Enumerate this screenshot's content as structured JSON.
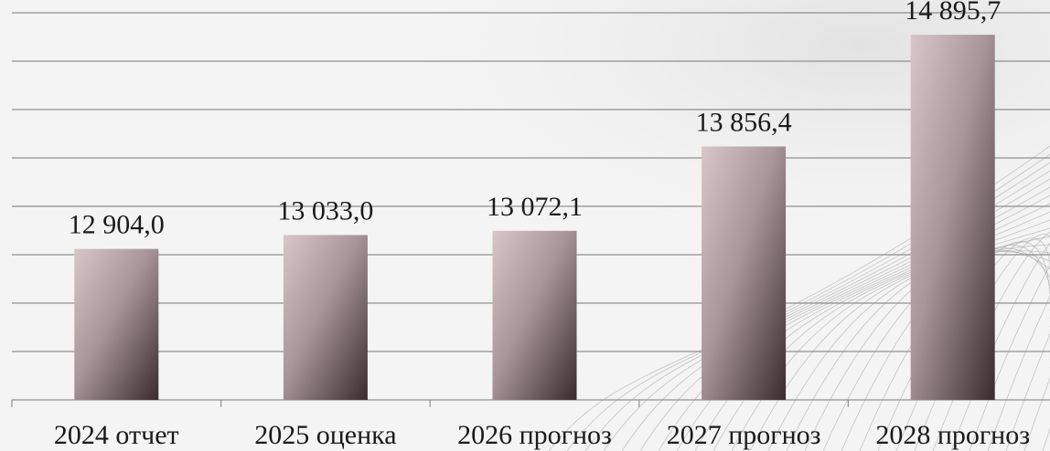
{
  "chart_data": {
    "type": "bar",
    "title": "",
    "xlabel": "",
    "ylabel": "",
    "categories": [
      "2024 отчет",
      "2025 оценка",
      "2026 прогноз",
      "2027 прогноз",
      "2028 прогноз"
    ],
    "values": [
      12904.0,
      13033.0,
      13072.1,
      13856.4,
      14895.7
    ],
    "value_labels": [
      "12 904,0",
      "13 033,0",
      "13 072,1",
      "13 856,4",
      "14 895,7"
    ],
    "ylim": [
      11500,
      15100
    ],
    "ytick_step": 450,
    "grid": true,
    "legend": "none",
    "colors": {
      "bar_top": "#d8c6c7",
      "bar_mid": "#a8959a",
      "bar_bottom": "#3a2b2d",
      "grid": "#8f8f8f",
      "text": "#1a1a1a",
      "background": "#f4f4f4",
      "wave": "#9a9a9a"
    }
  }
}
